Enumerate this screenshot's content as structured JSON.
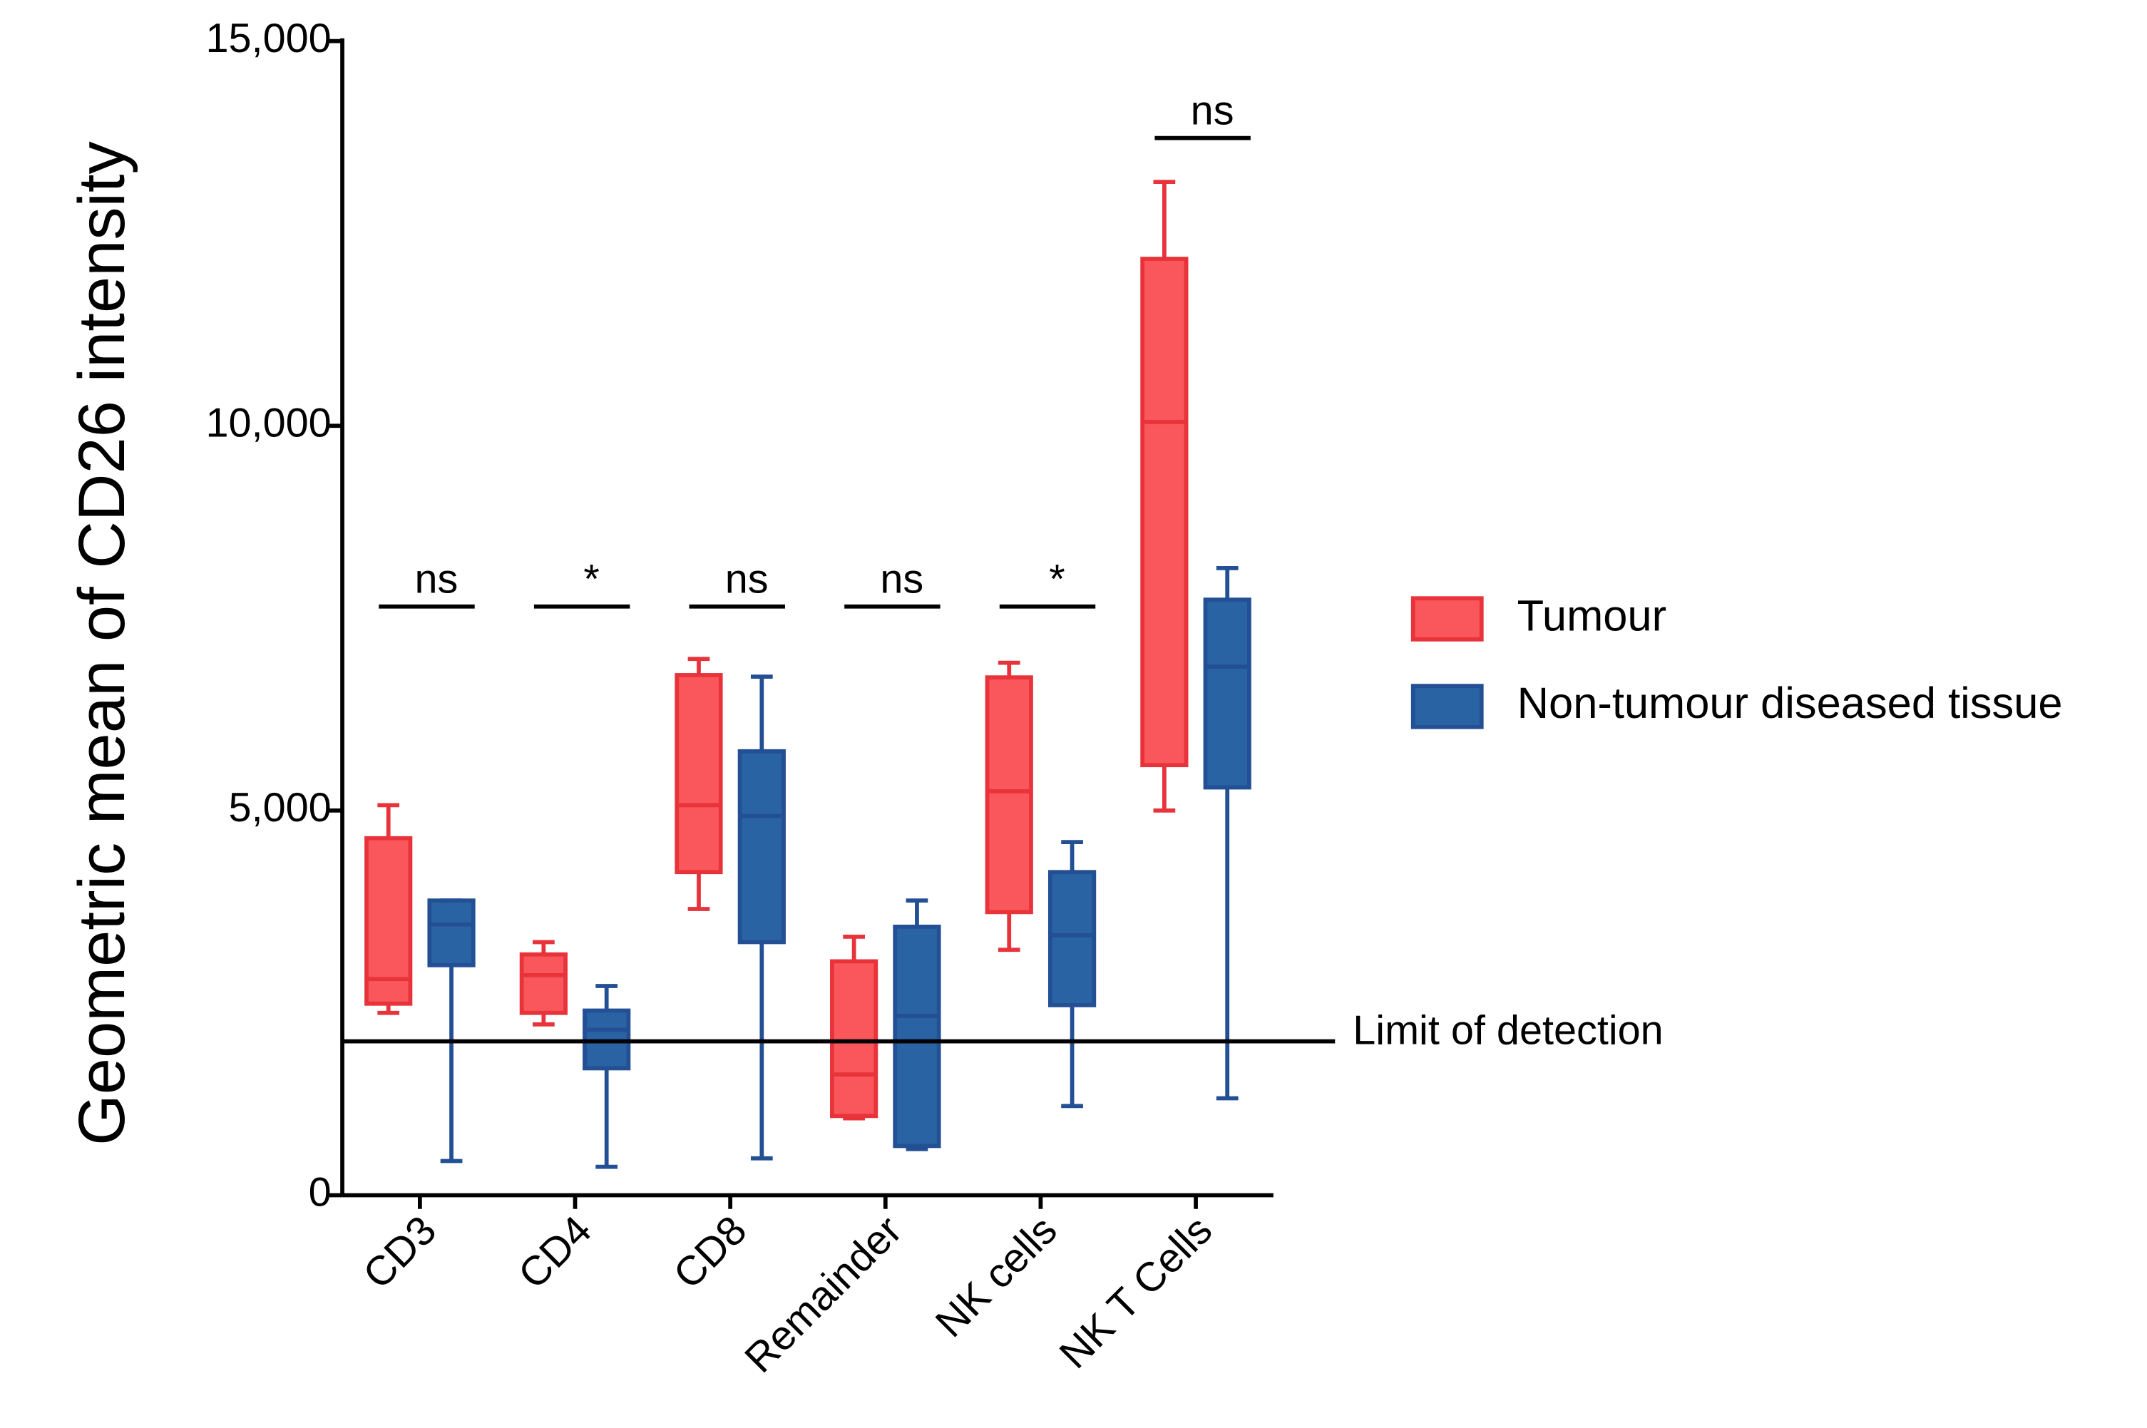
{
  "chart_data": {
    "type": "box",
    "y_label": "Geometric mean of CD26 intensity",
    "categories": [
      "CD3",
      "CD4",
      "CD8",
      "Remainder",
      "NK cells",
      "NK T Cells"
    ],
    "series": [
      {
        "name": "Tumour",
        "color": "#f9575c",
        "stroke": "#e8333b",
        "min": [
          2370,
          2220,
          3720,
          1000,
          3190,
          5000
        ],
        "q1": [
          2490,
          2370,
          4200,
          1030,
          3680,
          5590
        ],
        "median": [
          2810,
          2860,
          5070,
          1570,
          5250,
          10050
        ],
        "q3": [
          4640,
          3130,
          6760,
          3040,
          6730,
          12170
        ],
        "max": [
          5070,
          3290,
          6970,
          3360,
          6920,
          13170
        ]
      },
      {
        "name": "Non-tumour diseased tissue",
        "color": "#2a63a3",
        "stroke": "#234f94",
        "min": [
          445,
          370,
          480,
          600,
          1160,
          1260
        ],
        "q1": [
          2990,
          1650,
          3290,
          640,
          2470,
          5300
        ],
        "median": [
          3520,
          2150,
          4930,
          2330,
          3380,
          6870
        ],
        "q3": [
          3830,
          2400,
          5770,
          3490,
          4200,
          7740
        ],
        "max": [
          3830,
          2720,
          6740,
          3830,
          4590,
          8150
        ]
      }
    ],
    "significance": [
      "ns",
      "*",
      "ns",
      "ns",
      "*",
      "ns"
    ],
    "limit_of_detection": 2000,
    "limit_label": "Limit of detection",
    "ylim": [
      0,
      15000
    ],
    "yticks": [
      0,
      {
        "value": 5000,
        "label": "5,000"
      },
      {
        "value": 10000,
        "label": "10,000"
      },
      {
        "value": 15000,
        "label": "15,000"
      }
    ],
    "legend": "right"
  }
}
